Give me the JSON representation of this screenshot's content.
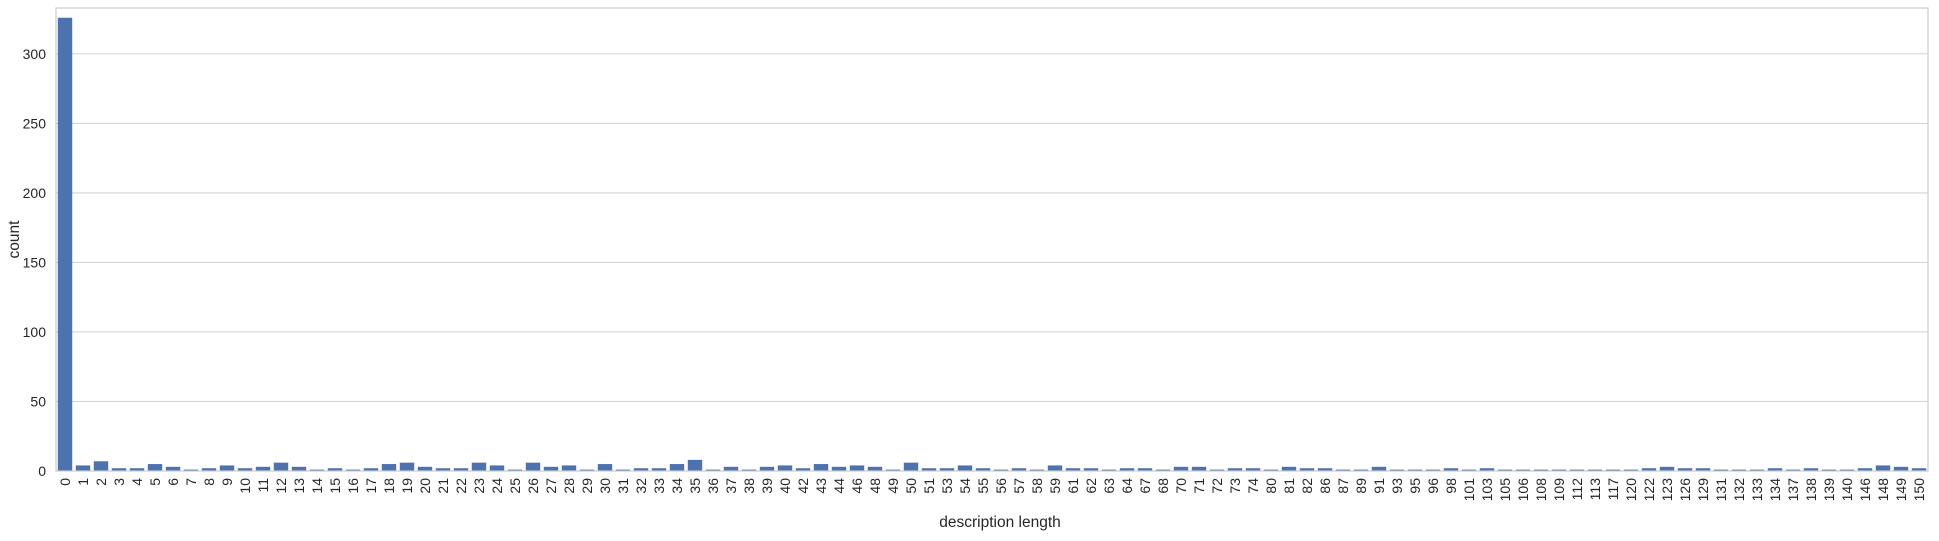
{
  "chart_data": {
    "type": "bar",
    "title": "",
    "xlabel": "description length",
    "ylabel": "count",
    "ylim": [
      0,
      333
    ],
    "yticks": [
      0,
      50,
      100,
      150,
      200,
      250,
      300
    ],
    "grid": "horizontal",
    "bar_color": "#4c72b0",
    "categories": [
      "0",
      "1",
      "2",
      "3",
      "4",
      "5",
      "6",
      "7",
      "8",
      "9",
      "10",
      "11",
      "12",
      "13",
      "14",
      "15",
      "16",
      "17",
      "18",
      "19",
      "20",
      "21",
      "22",
      "23",
      "24",
      "25",
      "26",
      "27",
      "28",
      "29",
      "30",
      "31",
      "32",
      "33",
      "34",
      "35",
      "36",
      "37",
      "38",
      "39",
      "40",
      "42",
      "43",
      "44",
      "46",
      "48",
      "49",
      "50",
      "51",
      "53",
      "54",
      "55",
      "56",
      "57",
      "58",
      "59",
      "61",
      "62",
      "63",
      "64",
      "67",
      "68",
      "70",
      "71",
      "72",
      "73",
      "74",
      "80",
      "81",
      "82",
      "86",
      "87",
      "89",
      "91",
      "93",
      "95",
      "96",
      "98",
      "101",
      "103",
      "105",
      "106",
      "108",
      "109",
      "112",
      "113",
      "117",
      "120",
      "122",
      "123",
      "126",
      "129",
      "131",
      "132",
      "133",
      "134",
      "137",
      "138",
      "139",
      "140",
      "146",
      "148",
      "149",
      "150"
    ],
    "values": [
      326,
      4,
      7,
      2,
      2,
      5,
      3,
      1,
      2,
      4,
      2,
      3,
      6,
      3,
      1,
      2,
      1,
      2,
      5,
      6,
      3,
      2,
      2,
      6,
      4,
      1,
      6,
      3,
      4,
      1,
      5,
      1,
      2,
      2,
      5,
      8,
      1,
      3,
      1,
      3,
      4,
      2,
      5,
      3,
      4,
      3,
      1,
      6,
      2,
      2,
      4,
      2,
      1,
      2,
      1,
      4,
      2,
      2,
      1,
      2,
      2,
      1,
      3,
      3,
      1,
      2,
      2,
      1,
      3,
      2,
      2,
      1,
      1,
      3,
      1,
      1,
      1,
      2,
      1,
      2,
      1,
      1,
      1,
      1,
      1,
      1,
      1,
      1,
      2,
      3,
      2,
      2,
      1,
      1,
      1,
      2,
      1,
      2,
      1,
      1,
      2,
      4,
      3,
      2
    ]
  }
}
